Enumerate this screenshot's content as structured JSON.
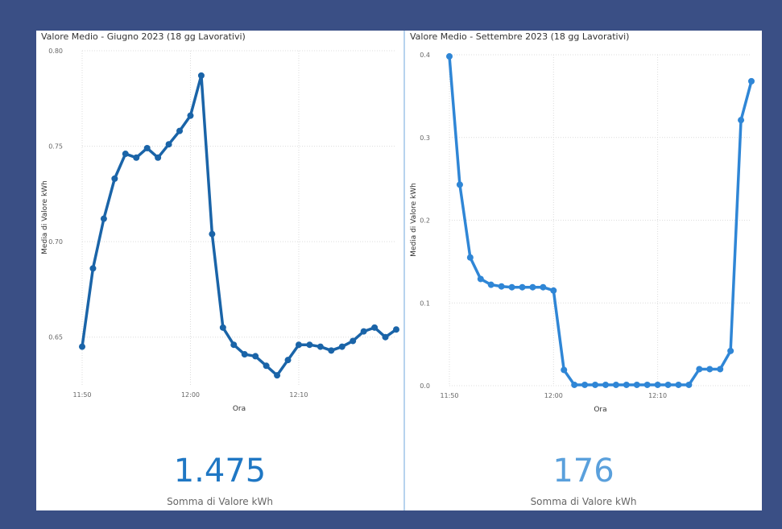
{
  "panels": [
    {
      "title": "Valore Medio - Giugno 2023 (18 gg Lavorativi)",
      "kpi_value": "1.475",
      "kpi_label": "Somma di Valore kWh",
      "kpi_color": "#1f77c4"
    },
    {
      "title": "Valore Medio - Settembre 2023 (18 gg Lavorativi)",
      "kpi_value": "176",
      "kpi_label": "Somma di Valore kWh",
      "kpi_color": "#5aa0dc"
    }
  ],
  "chart_data": [
    {
      "type": "line",
      "title": "Valore Medio - Giugno 2023 (18 gg Lavorativi)",
      "xlabel": "Ora",
      "ylabel": "Media di Valore kWh",
      "x_ticks": [
        "11:50",
        "12:00",
        "12:10"
      ],
      "y_ticks": [
        "0.65",
        "0.70",
        "0.75",
        "0.80"
      ],
      "ylim": [
        0.625,
        0.8
      ],
      "xlim": [
        "11:50",
        "12:19"
      ],
      "grid": true,
      "line_color": "#1a64a8",
      "x": [
        "11:50",
        "11:51",
        "11:52",
        "11:53",
        "11:54",
        "11:55",
        "11:56",
        "11:57",
        "11:58",
        "11:59",
        "12:00",
        "12:01",
        "12:02",
        "12:03",
        "12:04",
        "12:05",
        "12:06",
        "12:07",
        "12:08",
        "12:09",
        "12:10",
        "12:11",
        "12:12",
        "12:13",
        "12:14",
        "12:15",
        "12:16",
        "12:17",
        "12:18",
        "12:19"
      ],
      "values": [
        0.645,
        0.686,
        0.712,
        0.733,
        0.746,
        0.744,
        0.749,
        0.744,
        0.751,
        0.758,
        0.766,
        0.787,
        0.704,
        0.655,
        0.646,
        0.641,
        0.64,
        0.635,
        0.63,
        0.638,
        0.646,
        0.646,
        0.645,
        0.643,
        0.645,
        0.648,
        0.653,
        0.655,
        0.65,
        0.654
      ]
    },
    {
      "type": "line",
      "title": "Valore Medio - Settembre 2023 (18 gg Lavorativi)",
      "xlabel": "Ora",
      "ylabel": "Media di Valore kWh",
      "x_ticks": [
        "11:50",
        "12:00",
        "12:10"
      ],
      "y_ticks": [
        "0.0",
        "0.1",
        "0.2",
        "0.3",
        "0.4"
      ],
      "ylim": [
        0,
        0.4
      ],
      "xlim": [
        "11:50",
        "12:19"
      ],
      "grid": true,
      "line_color": "#2f86d6",
      "x": [
        "11:50",
        "11:51",
        "11:52",
        "11:53",
        "11:54",
        "11:55",
        "11:56",
        "11:57",
        "11:58",
        "11:59",
        "12:00",
        "12:01",
        "12:02",
        "12:03",
        "12:04",
        "12:05",
        "12:06",
        "12:07",
        "12:08",
        "12:09",
        "12:10",
        "12:11",
        "12:12",
        "12:13",
        "12:14",
        "12:15",
        "12:16",
        "12:17",
        "12:18",
        "12:19"
      ],
      "values": [
        0.398,
        0.243,
        0.155,
        0.129,
        0.122,
        0.12,
        0.119,
        0.119,
        0.119,
        0.119,
        0.115,
        0.019,
        0.001,
        0.001,
        0.001,
        0.001,
        0.001,
        0.001,
        0.001,
        0.001,
        0.001,
        0.001,
        0.001,
        0.001,
        0.02,
        0.02,
        0.02,
        0.042,
        0.321,
        0.368
      ]
    }
  ]
}
